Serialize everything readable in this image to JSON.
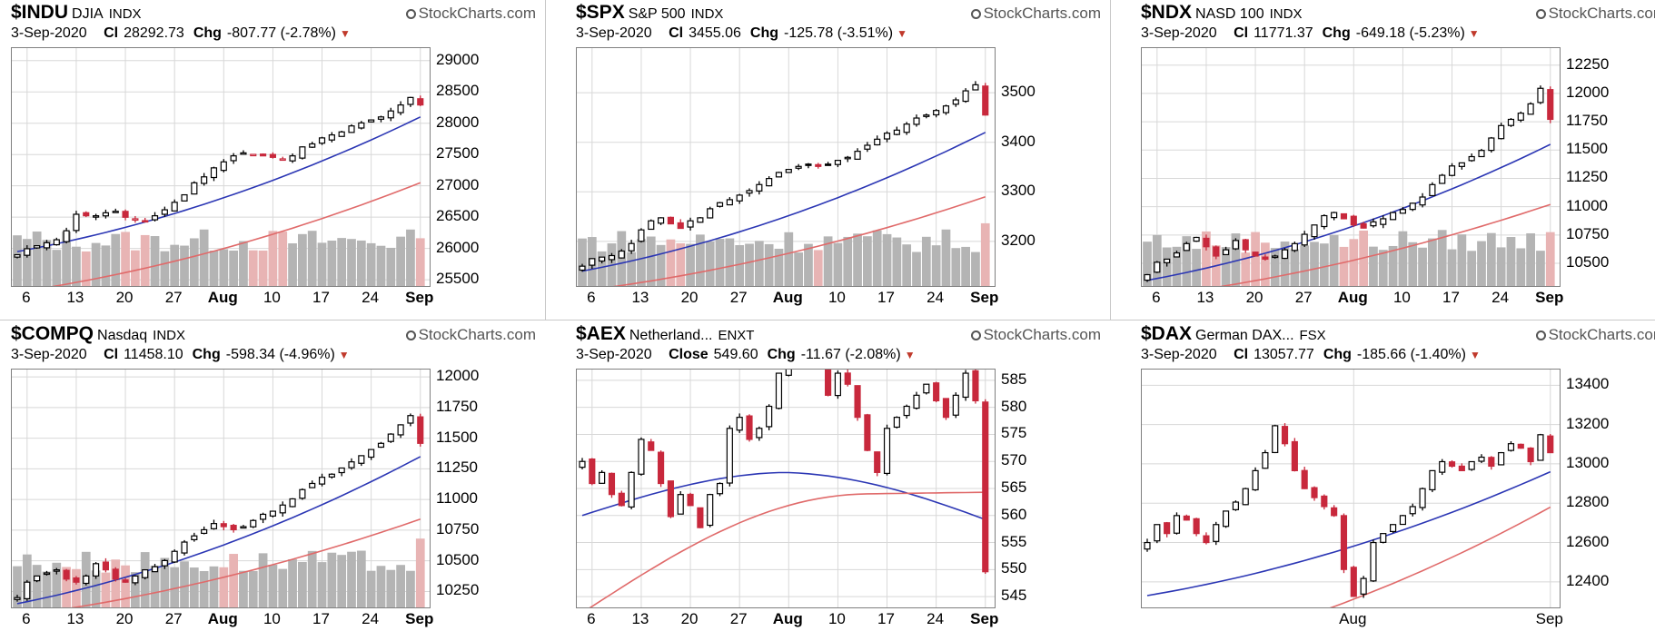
{
  "brand": "StockCharts.com",
  "colors": {
    "up": "#000000",
    "down_fill": "#c8283c",
    "ma_fast": "#2b36b4",
    "ma_slow": "#e06a6a",
    "vol_up": "#b4b4b4",
    "vol_down": "#e8b4b4",
    "grid": "#d8d8d8"
  },
  "charts": [
    {
      "symbol": "$INDU",
      "name": "DJIA",
      "exchange": "INDX",
      "date": "3-Sep-2020",
      "close_label": "Cl",
      "close": "28292.73",
      "chg_label": "Chg",
      "change": "-807.77 (-2.78%)",
      "chart_data": {
        "type": "candlestick",
        "yticks": [
          25500,
          26000,
          26500,
          27000,
          27500,
          28000,
          28500,
          29000
        ],
        "ylim": [
          25400,
          29200
        ],
        "xticks": [
          {
            "label": "6",
            "i": 1
          },
          {
            "label": "13",
            "i": 6
          },
          {
            "label": "20",
            "i": 11
          },
          {
            "label": "27",
            "i": 16
          },
          {
            "label": "Aug",
            "i": 21,
            "bold": true
          },
          {
            "label": "10",
            "i": 26
          },
          {
            "label": "17",
            "i": 31
          },
          {
            "label": "24",
            "i": 36
          },
          {
            "label": "Sep",
            "i": 41,
            "bold": true
          }
        ],
        "start_close": 25900,
        "end_close": 28292,
        "trend": [
          0.0,
          0.04,
          0.06,
          0.08,
          0.1,
          0.16,
          0.27,
          0.26,
          0.26,
          0.28,
          0.29,
          0.25,
          0.24,
          0.22,
          0.26,
          0.3,
          0.35,
          0.4,
          0.48,
          0.52,
          0.58,
          0.62,
          0.66,
          0.68,
          0.67,
          0.66,
          0.65,
          0.64,
          0.66,
          0.72,
          0.74,
          0.78,
          0.8,
          0.82,
          0.86,
          0.88,
          0.9,
          0.92,
          0.96,
          1.0,
          1.05,
          1.0
        ],
        "ma_fast_start": 25950,
        "ma_fast_end": 28100,
        "ma_slow_start": 25300,
        "ma_slow_end": 27050,
        "series": [
          {
            "name": "MA fast"
          },
          {
            "name": "MA slow"
          }
        ]
      }
    },
    {
      "symbol": "$SPX",
      "name": "S&P 500",
      "exchange": "INDX",
      "date": "3-Sep-2020",
      "close_label": "Cl",
      "close": "3455.06",
      "chg_label": "Chg",
      "change": "-125.78 (-3.51%)",
      "chart_data": {
        "type": "candlestick",
        "yticks": [
          3200,
          3300,
          3400,
          3500
        ],
        "ylim": [
          3110,
          3590
        ],
        "xticks": [
          {
            "label": "6",
            "i": 1
          },
          {
            "label": "13",
            "i": 6
          },
          {
            "label": "20",
            "i": 11
          },
          {
            "label": "27",
            "i": 16
          },
          {
            "label": "Aug",
            "i": 21,
            "bold": true
          },
          {
            "label": "10",
            "i": 26
          },
          {
            "label": "17",
            "i": 31
          },
          {
            "label": "24",
            "i": 36
          },
          {
            "label": "Sep",
            "i": 41,
            "bold": true
          }
        ],
        "start_close": 3150,
        "end_close": 3455,
        "trend": [
          0.0,
          0.05,
          0.06,
          0.07,
          0.1,
          0.15,
          0.24,
          0.3,
          0.32,
          0.28,
          0.25,
          0.3,
          0.32,
          0.38,
          0.42,
          0.44,
          0.47,
          0.5,
          0.54,
          0.58,
          0.62,
          0.64,
          0.66,
          0.67,
          0.66,
          0.67,
          0.7,
          0.72,
          0.76,
          0.8,
          0.84,
          0.88,
          0.9,
          0.94,
          0.98,
          1.0,
          1.03,
          1.06,
          1.1,
          1.16,
          1.2,
          1.0
        ],
        "ma_fast_start": 3140,
        "ma_fast_end": 3420,
        "ma_slow_start": 3100,
        "ma_slow_end": 3290,
        "series": [
          {
            "name": "MA fast"
          },
          {
            "name": "MA slow"
          }
        ]
      }
    },
    {
      "symbol": "$NDX",
      "name": "NASD 100",
      "exchange": "INDX",
      "date": "3-Sep-2020",
      "close_label": "Cl",
      "close": "11771.37",
      "chg_label": "Chg",
      "change": "-649.18 (-5.23%)",
      "chart_data": {
        "type": "candlestick",
        "yticks": [
          10500,
          10750,
          11000,
          11250,
          11500,
          11750,
          12000,
          12250
        ],
        "ylim": [
          10300,
          12400
        ],
        "xticks": [
          {
            "label": "6",
            "i": 1
          },
          {
            "label": "13",
            "i": 6
          },
          {
            "label": "20",
            "i": 11
          },
          {
            "label": "27",
            "i": 16
          },
          {
            "label": "Aug",
            "i": 21,
            "bold": true
          },
          {
            "label": "10",
            "i": 26
          },
          {
            "label": "17",
            "i": 31
          },
          {
            "label": "24",
            "i": 36
          },
          {
            "label": "Sep",
            "i": 41,
            "bold": true
          }
        ],
        "start_close": 10400,
        "end_close": 11771,
        "trend": [
          0.0,
          0.08,
          0.1,
          0.14,
          0.2,
          0.24,
          0.18,
          0.12,
          0.16,
          0.22,
          0.16,
          0.12,
          0.1,
          0.12,
          0.16,
          0.2,
          0.26,
          0.32,
          0.38,
          0.4,
          0.36,
          0.32,
          0.3,
          0.34,
          0.36,
          0.4,
          0.42,
          0.46,
          0.5,
          0.58,
          0.64,
          0.7,
          0.72,
          0.76,
          0.8,
          0.88,
          0.96,
          1.0,
          1.04,
          1.1,
          1.2,
          1.0
        ],
        "ma_fast_start": 10350,
        "ma_fast_end": 11550,
        "ma_slow_start": 10200,
        "ma_slow_end": 11020,
        "series": [
          {
            "name": "MA fast"
          },
          {
            "name": "MA slow"
          }
        ]
      }
    },
    {
      "symbol": "$COMPQ",
      "name": "Nasdaq",
      "exchange": "INDX",
      "date": "3-Sep-2020",
      "close_label": "Cl",
      "close": "11458.10",
      "chg_label": "Chg",
      "change": "-598.34 (-4.96%)",
      "chart_data": {
        "type": "candlestick",
        "yticks": [
          10250,
          10500,
          10750,
          11000,
          11250,
          11500,
          11750,
          12000
        ],
        "ylim": [
          10120,
          12060
        ],
        "xticks": [
          {
            "label": "6",
            "i": 1
          },
          {
            "label": "13",
            "i": 6
          },
          {
            "label": "20",
            "i": 11
          },
          {
            "label": "27",
            "i": 16
          },
          {
            "label": "Aug",
            "i": 21,
            "bold": true
          },
          {
            "label": "10",
            "i": 26
          },
          {
            "label": "17",
            "i": 31
          },
          {
            "label": "24",
            "i": 36
          },
          {
            "label": "Sep",
            "i": 41,
            "bold": true
          }
        ],
        "start_close": 10200,
        "end_close": 11458,
        "trend": [
          0.0,
          0.1,
          0.14,
          0.16,
          0.18,
          0.12,
          0.1,
          0.14,
          0.22,
          0.18,
          0.12,
          0.1,
          0.14,
          0.18,
          0.2,
          0.24,
          0.3,
          0.36,
          0.4,
          0.44,
          0.48,
          0.46,
          0.44,
          0.46,
          0.5,
          0.54,
          0.56,
          0.6,
          0.64,
          0.7,
          0.74,
          0.78,
          0.8,
          0.84,
          0.88,
          0.92,
          0.96,
          1.0,
          1.06,
          1.12,
          1.18,
          1.0
        ],
        "ma_fast_start": 10150,
        "ma_fast_end": 11350,
        "ma_slow_start": 10050,
        "ma_slow_end": 10840,
        "series": [
          {
            "name": "MA fast"
          },
          {
            "name": "MA slow"
          }
        ]
      }
    },
    {
      "symbol": "$AEX",
      "name": "Netherland...",
      "exchange": "ENXT",
      "date": "3-Sep-2020",
      "close_label": "Close",
      "close": "549.60",
      "chg_label": "Chg",
      "change": "-11.67 (-2.08%)",
      "chart_data": {
        "type": "candlestick",
        "yticks": [
          545,
          550,
          555,
          560,
          565,
          570,
          575,
          580,
          585
        ],
        "ylim": [
          543,
          587
        ],
        "xticks": [
          {
            "label": "6",
            "i": 1
          },
          {
            "label": "13",
            "i": 6
          },
          {
            "label": "20",
            "i": 11
          },
          {
            "label": "27",
            "i": 16
          },
          {
            "label": "Aug",
            "i": 21,
            "bold": true
          },
          {
            "label": "10",
            "i": 26
          },
          {
            "label": "17",
            "i": 31
          },
          {
            "label": "24",
            "i": 36
          },
          {
            "label": "Sep",
            "i": 41,
            "bold": true
          }
        ],
        "start_close": 570,
        "end_close": 549.6,
        "trend": [
          0.0,
          0.2,
          0.1,
          0.3,
          0.4,
          0.1,
          -0.2,
          -0.1,
          0.2,
          0.5,
          0.3,
          0.4,
          0.6,
          0.3,
          0.2,
          -0.3,
          -0.4,
          -0.2,
          -0.3,
          -0.5,
          -0.8,
          -1.1,
          -1.4,
          -1.3,
          -0.9,
          -0.6,
          -0.8,
          -0.7,
          -0.4,
          -0.1,
          0.1,
          -0.3,
          -0.4,
          -0.5,
          -0.6,
          -0.7,
          -0.55,
          -0.4,
          -0.6,
          -0.8,
          -0.55,
          -1.0
        ],
        "ma_fast_start": 561,
        "ma_fast_end": 560,
        "ma_slow_start": 542,
        "ma_slow_end": 564,
        "series": [
          {
            "name": "MA fast"
          },
          {
            "name": "MA slow"
          }
        ]
      }
    },
    {
      "symbol": "$DAX",
      "name": "German DAX...",
      "exchange": "FSX",
      "date": "3-Sep-2020",
      "close_label": "Cl",
      "close": "13057.77",
      "chg_label": "Chg",
      "change": "-185.66 (-1.40%)",
      "chart_data": {
        "type": "candlestick",
        "yticks": [
          12400,
          12600,
          12800,
          13000,
          13200,
          13400
        ],
        "ylim": [
          12270,
          13480
        ],
        "xticks": [
          {
            "label": "Aug",
            "i": 21
          },
          {
            "label": "Sep",
            "i": 41
          }
        ],
        "start_close": 12600,
        "end_close": 13057,
        "trend": [
          0.0,
          0.2,
          0.1,
          0.3,
          0.25,
          0.1,
          0.0,
          0.2,
          0.35,
          0.45,
          0.6,
          0.8,
          1.0,
          1.3,
          1.1,
          0.8,
          0.6,
          0.5,
          0.4,
          0.3,
          -0.3,
          -0.6,
          -0.4,
          0.0,
          0.1,
          0.2,
          0.3,
          0.4,
          0.6,
          0.8,
          0.9,
          0.85,
          0.8,
          0.9,
          0.95,
          0.85,
          1.0,
          1.1,
          1.05,
          0.9,
          1.2,
          0.95
        ],
        "ma_fast_start": 12330,
        "ma_fast_end": 12960,
        "ma_slow_start": 12000,
        "ma_slow_end": 12780,
        "series": [
          {
            "name": "MA fast"
          },
          {
            "name": "MA slow"
          }
        ]
      }
    }
  ]
}
